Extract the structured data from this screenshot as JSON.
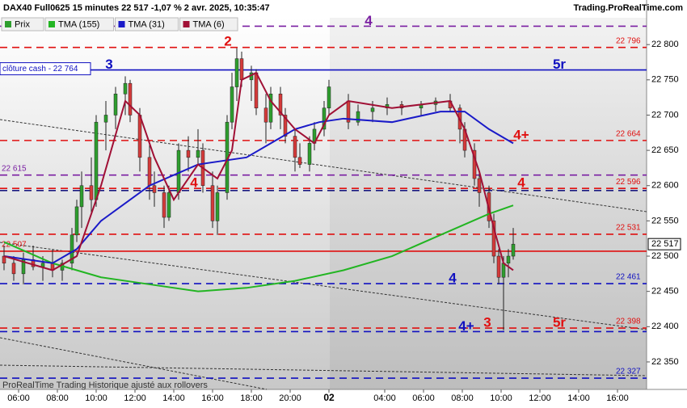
{
  "chart_data": {
    "type": "candlestick",
    "title": "DAX40 Full0625 15 minutes 22 517 -1,07 % 2 avr. 2025, 10:35:47",
    "source": "Trading.ProRealTime.com",
    "footer": "ProRealTime Trading  Historique ajusté aux rollovers",
    "last_price": {
      "value": 22517,
      "label": "22 517"
    },
    "ylim": [
      22311,
      22838
    ],
    "yticks": [
      {
        "value": 22350,
        "label": "22 350"
      },
      {
        "value": 22400,
        "label": "22 400"
      },
      {
        "value": 22450,
        "label": "22 450"
      },
      {
        "value": 22500,
        "label": "22 500"
      },
      {
        "value": 22550,
        "label": "22 550"
      },
      {
        "value": 22600,
        "label": "22 600"
      },
      {
        "value": 22650,
        "label": "22 650"
      },
      {
        "value": 22700,
        "label": "22 700"
      },
      {
        "value": 22750,
        "label": "22 750"
      },
      {
        "value": 22800,
        "label": "22 800"
      }
    ],
    "xlim": [
      -0.833,
      132.5
    ],
    "xticks": [
      {
        "value": 3,
        "label": "06:00"
      },
      {
        "value": 11,
        "label": "08:00"
      },
      {
        "value": 19,
        "label": "10:00"
      },
      {
        "value": 27,
        "label": "12:00"
      },
      {
        "value": 35,
        "label": "14:00"
      },
      {
        "value": 43,
        "label": "16:00"
      },
      {
        "value": 51,
        "label": "18:00"
      },
      {
        "value": 59,
        "label": "20:00"
      },
      {
        "value": 67,
        "label": "02"
      },
      {
        "value": 78.5,
        "label": "04:00"
      },
      {
        "value": 86.5,
        "label": "06:00"
      },
      {
        "value": 94.5,
        "label": "08:00"
      },
      {
        "value": 102.5,
        "label": "10:00"
      },
      {
        "value": 110.5,
        "label": "12:00"
      },
      {
        "value": 118.5,
        "label": "14:00"
      },
      {
        "value": 126.5,
        "label": "16:00"
      }
    ],
    "candles": {
      "name": "Prix",
      "up_color": "#2e9e2e",
      "down_color": "#d43a3a",
      "x": [
        0,
        2,
        4,
        6,
        8,
        10,
        12,
        14,
        15,
        16,
        18,
        19,
        21,
        23,
        25,
        26,
        28,
        30,
        31,
        33,
        34,
        36,
        38,
        40,
        41,
        43,
        44,
        46,
        47,
        48,
        49,
        51,
        52,
        54,
        55,
        57,
        58,
        60,
        61,
        63,
        64,
        66,
        67,
        71,
        73,
        76,
        79,
        82,
        86,
        89,
        92,
        94,
        95,
        97,
        98,
        100,
        101,
        102,
        103,
        104,
        105
      ],
      "open": [
        22500,
        22490,
        22475,
        22495,
        22485,
        22490,
        22480,
        22490,
        22530,
        22570,
        22600,
        22580,
        22690,
        22700,
        22730,
        22745,
        22700,
        22640,
        22600,
        22590,
        22555,
        22590,
        22650,
        22640,
        22650,
        22600,
        22550,
        22590,
        22690,
        22740,
        22780,
        22750,
        22760,
        22710,
        22690,
        22730,
        22700,
        22670,
        22640,
        22630,
        22660,
        22680,
        22710,
        22720,
        22690,
        22705,
        22710,
        22715,
        22710,
        22715,
        22720,
        22710,
        22680,
        22650,
        22610,
        22590,
        22550,
        22500,
        22470,
        22490,
        22500
      ],
      "high": [
        22515,
        22500,
        22505,
        22515,
        22500,
        22510,
        22495,
        22540,
        22580,
        22620,
        22640,
        22700,
        22720,
        22740,
        22755,
        22750,
        22710,
        22660,
        22620,
        22600,
        22600,
        22660,
        22670,
        22680,
        22660,
        22620,
        22600,
        22700,
        22760,
        22795,
        22790,
        22770,
        22765,
        22730,
        22740,
        22740,
        22710,
        22680,
        22660,
        22670,
        22690,
        22720,
        22750,
        22730,
        22715,
        22720,
        22725,
        22720,
        22720,
        22725,
        22730,
        22715,
        22690,
        22660,
        22620,
        22600,
        22560,
        22510,
        22500,
        22510,
        22540
      ],
      "low": [
        22480,
        22465,
        22460,
        22480,
        22465,
        22470,
        22465,
        22480,
        22520,
        22540,
        22560,
        22570,
        22650,
        22680,
        22700,
        22690,
        22620,
        22580,
        22570,
        22540,
        22550,
        22580,
        22620,
        22630,
        22590,
        22540,
        22530,
        22580,
        22680,
        22720,
        22740,
        22720,
        22700,
        22660,
        22680,
        22680,
        22660,
        22620,
        22625,
        22620,
        22650,
        22670,
        22700,
        22680,
        22685,
        22690,
        22700,
        22700,
        22700,
        22705,
        22705,
        22660,
        22640,
        22600,
        22570,
        22540,
        22490,
        22460,
        22395,
        22470,
        22495
      ],
      "close": [
        22490,
        22475,
        22495,
        22485,
        22490,
        22480,
        22490,
        22530,
        22570,
        22600,
        22580,
        22690,
        22700,
        22730,
        22745,
        22700,
        22640,
        22600,
        22590,
        22555,
        22590,
        22650,
        22640,
        22650,
        22600,
        22550,
        22590,
        22690,
        22740,
        22780,
        22750,
        22760,
        22710,
        22690,
        22730,
        22700,
        22670,
        22640,
        22630,
        22660,
        22680,
        22710,
        22740,
        22690,
        22705,
        22710,
        22715,
        22710,
        22715,
        22720,
        22710,
        22680,
        22650,
        22610,
        22590,
        22550,
        22500,
        22470,
        22490,
        22500,
        22517
      ]
    },
    "series": [
      {
        "name": "TMA (155)",
        "color": "#22b522",
        "x": [
          0,
          10,
          20,
          30,
          40,
          50,
          60,
          70,
          80,
          90,
          100,
          105
        ],
        "values": [
          22520,
          22490,
          22470,
          22460,
          22450,
          22455,
          22465,
          22480,
          22500,
          22530,
          22560,
          22572
        ]
      },
      {
        "name": "TMA (31)",
        "color": "#1a1ac8",
        "x": [
          0,
          10,
          15,
          20,
          30,
          40,
          45,
          50,
          55,
          60,
          65,
          70,
          80,
          90,
          95,
          100,
          105
        ],
        "values": [
          22500,
          22490,
          22510,
          22550,
          22600,
          22630,
          22635,
          22640,
          22660,
          22680,
          22690,
          22695,
          22690,
          22705,
          22705,
          22680,
          22660
        ]
      },
      {
        "name": "TMA (6)",
        "color": "#a01035",
        "x": [
          0,
          10,
          15,
          20,
          25,
          28,
          31,
          35,
          40,
          44,
          47,
          49,
          52,
          55,
          60,
          64,
          67,
          71,
          80,
          92,
          95,
          98,
          101,
          103,
          105
        ],
        "values": [
          22500,
          22480,
          22500,
          22600,
          22720,
          22700,
          22640,
          22580,
          22630,
          22610,
          22650,
          22750,
          22760,
          22720,
          22680,
          22660,
          22700,
          22720,
          22710,
          22720,
          22680,
          22620,
          22540,
          22490,
          22480
        ]
      }
    ],
    "levels": [
      {
        "value": 22826,
        "color": "#7a1fa2",
        "style": "dashed",
        "notes": [
          "4"
        ]
      },
      {
        "value": 22796,
        "color": "#e01010",
        "style": "dashed",
        "label": "22 796"
      },
      {
        "value": 22764,
        "color": "#1010c0",
        "style": "solid",
        "tag": "clôture cash -  22 764",
        "notes": [
          "3",
          "5r"
        ]
      },
      {
        "value": 22664,
        "color": "#e01010",
        "style": "dashed",
        "label": "22 664",
        "notes": [
          "4+"
        ]
      },
      {
        "value": 22615,
        "color": "#7a1fa2",
        "style": "dashed",
        "left_label": "22 615"
      },
      {
        "value": 22596,
        "color": "#e01010",
        "style": "dashed",
        "label": "22 596",
        "notes": [
          "4",
          "4"
        ]
      },
      {
        "value": 22593,
        "color": "#1a1a80",
        "style": "dashed"
      },
      {
        "value": 22531,
        "color": "#e01010",
        "style": "dashed",
        "label": "22 531"
      },
      {
        "value": 22507,
        "color": "#e01010",
        "style": "solid",
        "left_label": "22 507"
      },
      {
        "value": 22461,
        "color": "#1010c0",
        "style": "dashed",
        "label": "22 461",
        "notes": [
          "4"
        ]
      },
      {
        "value": 22398,
        "color": "#e01010",
        "style": "dashed",
        "label": "22 398",
        "notes": [
          "3",
          "5r"
        ]
      },
      {
        "value": 22393,
        "color": "#1010c0",
        "style": "dashed",
        "notes": [
          "4+"
        ]
      },
      {
        "value": 22327,
        "color": "#1010c0",
        "style": "dashed",
        "label": "22 327"
      }
    ],
    "peak_note": {
      "text": "2",
      "color": "#e01010"
    }
  }
}
